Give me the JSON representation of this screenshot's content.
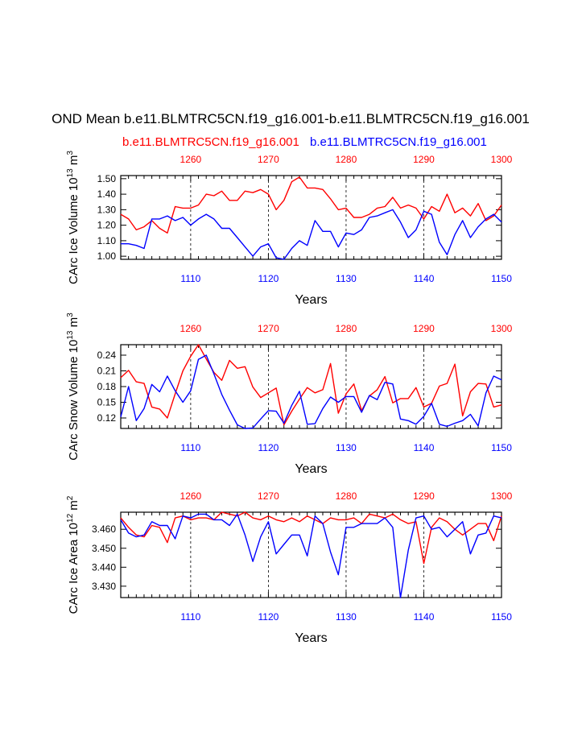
{
  "title": "OND Mean b.e11.BLMTRC5CN.f19_g16.001-b.e11.BLMTRC5CN.f19_g16.001",
  "legend": {
    "red_case": "b.e11.BLMTRC5CN.f19_g16.001",
    "blue_case": "b.e11.BLMTRC5CN.f19_g16.001"
  },
  "colors": {
    "red": "#ff0000",
    "blue": "#0000ff",
    "axis": "#000000"
  },
  "chart_data": [
    {
      "type": "line",
      "ylabel": "CArc Ice Volume 10",
      "ylabel_exp": "13",
      "ylabel_unit": " m",
      "ylabel_unit_exp": "3",
      "xlabel": "Years",
      "xlim": [
        1101,
        1150
      ],
      "ylim": [
        0.98,
        1.52
      ],
      "yticks": [
        "1.00",
        "1.10",
        "1.20",
        "1.30",
        "1.40",
        "1.50"
      ],
      "ytick_values": [
        1.0,
        1.1,
        1.2,
        1.3,
        1.4,
        1.5
      ],
      "bottom_ticks": [
        "1110",
        "1120",
        "1130",
        "1140",
        "1150"
      ],
      "top_ticks": [
        "1260",
        "1270",
        "1280",
        "1290",
        "1300"
      ],
      "x_top": [
        1251,
        1300
      ],
      "series": [
        {
          "name": "red",
          "values": [
            1.27,
            1.24,
            1.17,
            1.19,
            1.23,
            1.18,
            1.15,
            1.32,
            1.31,
            1.31,
            1.33,
            1.4,
            1.39,
            1.42,
            1.36,
            1.36,
            1.42,
            1.41,
            1.43,
            1.4,
            1.3,
            1.36,
            1.48,
            1.51,
            1.44,
            1.44,
            1.43,
            1.37,
            1.3,
            1.31,
            1.25,
            1.25,
            1.27,
            1.31,
            1.32,
            1.38,
            1.31,
            1.33,
            1.31,
            1.24,
            1.32,
            1.29,
            1.4,
            1.28,
            1.31,
            1.26,
            1.34,
            1.23,
            1.26,
            1.33
          ]
        },
        {
          "name": "blue",
          "values": [
            1.08,
            1.08,
            1.07,
            1.05,
            1.24,
            1.24,
            1.26,
            1.23,
            1.25,
            1.2,
            1.24,
            1.27,
            1.24,
            1.18,
            1.18,
            1.12,
            1.06,
            1.0,
            1.06,
            1.08,
            0.99,
            0.98,
            1.05,
            1.1,
            1.07,
            1.23,
            1.16,
            1.16,
            1.06,
            1.15,
            1.14,
            1.17,
            1.25,
            1.26,
            1.28,
            1.3,
            1.22,
            1.12,
            1.17,
            1.29,
            1.27,
            1.09,
            1.01,
            1.14,
            1.23,
            1.12,
            1.19,
            1.24,
            1.27,
            1.22
          ]
        }
      ]
    },
    {
      "type": "line",
      "ylabel": "CArc Snow Volume 10",
      "ylabel_exp": "13",
      "ylabel_unit": " m",
      "ylabel_unit_exp": "3",
      "xlabel": "Years",
      "xlim": [
        1101,
        1150
      ],
      "ylim": [
        0.1,
        0.26
      ],
      "yticks": [
        "0.12",
        "0.15",
        "0.18",
        "0.21",
        "0.24"
      ],
      "ytick_values": [
        0.12,
        0.15,
        0.18,
        0.21,
        0.24
      ],
      "bottom_ticks": [
        "1110",
        "1120",
        "1130",
        "1140",
        "1150"
      ],
      "top_ticks": [
        "1260",
        "1270",
        "1280",
        "1290",
        "1300"
      ],
      "x_top": [
        1251,
        1300
      ],
      "series": [
        {
          "name": "red",
          "values": [
            0.197,
            0.211,
            0.189,
            0.186,
            0.141,
            0.137,
            0.12,
            0.166,
            0.21,
            0.238,
            0.26,
            0.233,
            0.207,
            0.192,
            0.23,
            0.215,
            0.218,
            0.179,
            0.159,
            0.168,
            0.177,
            0.107,
            0.133,
            0.156,
            0.178,
            0.168,
            0.174,
            0.224,
            0.129,
            0.166,
            0.185,
            0.134,
            0.162,
            0.174,
            0.199,
            0.149,
            0.157,
            0.157,
            0.178,
            0.141,
            0.148,
            0.181,
            0.186,
            0.223,
            0.124,
            0.17,
            0.186,
            0.185,
            0.141,
            0.145
          ]
        },
        {
          "name": "blue",
          "values": [
            0.122,
            0.18,
            0.115,
            0.138,
            0.184,
            0.17,
            0.2,
            0.172,
            0.15,
            0.172,
            0.232,
            0.24,
            0.204,
            0.165,
            0.135,
            0.107,
            0.1,
            0.101,
            0.118,
            0.134,
            0.133,
            0.11,
            0.144,
            0.171,
            0.108,
            0.109,
            0.138,
            0.16,
            0.15,
            0.161,
            0.161,
            0.131,
            0.163,
            0.155,
            0.188,
            0.185,
            0.118,
            0.115,
            0.108,
            0.123,
            0.148,
            0.108,
            0.104,
            0.11,
            0.115,
            0.127,
            0.105,
            0.168,
            0.2,
            0.193
          ]
        }
      ]
    },
    {
      "type": "line",
      "ylabel": "CArc Ice Area 10",
      "ylabel_exp": "12",
      "ylabel_unit": " m",
      "ylabel_unit_exp": "2",
      "xlabel": "Years",
      "xlim": [
        1101,
        1150
      ],
      "ylim": [
        3.424,
        3.469
      ],
      "yticks": [
        "3.430",
        "3.440",
        "3.450",
        "3.460"
      ],
      "ytick_values": [
        3.43,
        3.44,
        3.45,
        3.46
      ],
      "bottom_ticks": [
        "1110",
        "1120",
        "1130",
        "1140",
        "1150"
      ],
      "top_ticks": [
        "1260",
        "1270",
        "1280",
        "1290",
        "1300"
      ],
      "x_top": [
        1251,
        1300
      ],
      "series": [
        {
          "name": "red",
          "values": [
            3.466,
            3.461,
            3.457,
            3.456,
            3.462,
            3.461,
            3.453,
            3.466,
            3.467,
            3.465,
            3.466,
            3.466,
            3.465,
            3.469,
            3.468,
            3.467,
            3.469,
            3.466,
            3.465,
            3.467,
            3.465,
            3.464,
            3.466,
            3.464,
            3.467,
            3.465,
            3.463,
            3.466,
            3.465,
            3.465,
            3.466,
            3.463,
            3.468,
            3.467,
            3.466,
            3.468,
            3.465,
            3.463,
            3.464,
            3.442,
            3.461,
            3.466,
            3.464,
            3.46,
            3.457,
            3.46,
            3.463,
            3.463,
            3.454,
            3.467
          ]
        },
        {
          "name": "blue",
          "values": [
            3.465,
            3.458,
            3.456,
            3.457,
            3.464,
            3.462,
            3.462,
            3.455,
            3.467,
            3.466,
            3.468,
            3.468,
            3.465,
            3.465,
            3.462,
            3.468,
            3.457,
            3.443,
            3.456,
            3.464,
            3.447,
            3.452,
            3.457,
            3.457,
            3.446,
            3.467,
            3.463,
            3.448,
            3.436,
            3.461,
            3.461,
            3.463,
            3.463,
            3.463,
            3.466,
            3.461,
            3.424,
            3.449,
            3.466,
            3.467,
            3.46,
            3.461,
            3.456,
            3.46,
            3.464,
            3.447,
            3.457,
            3.458,
            3.467,
            3.466
          ]
        }
      ]
    }
  ]
}
